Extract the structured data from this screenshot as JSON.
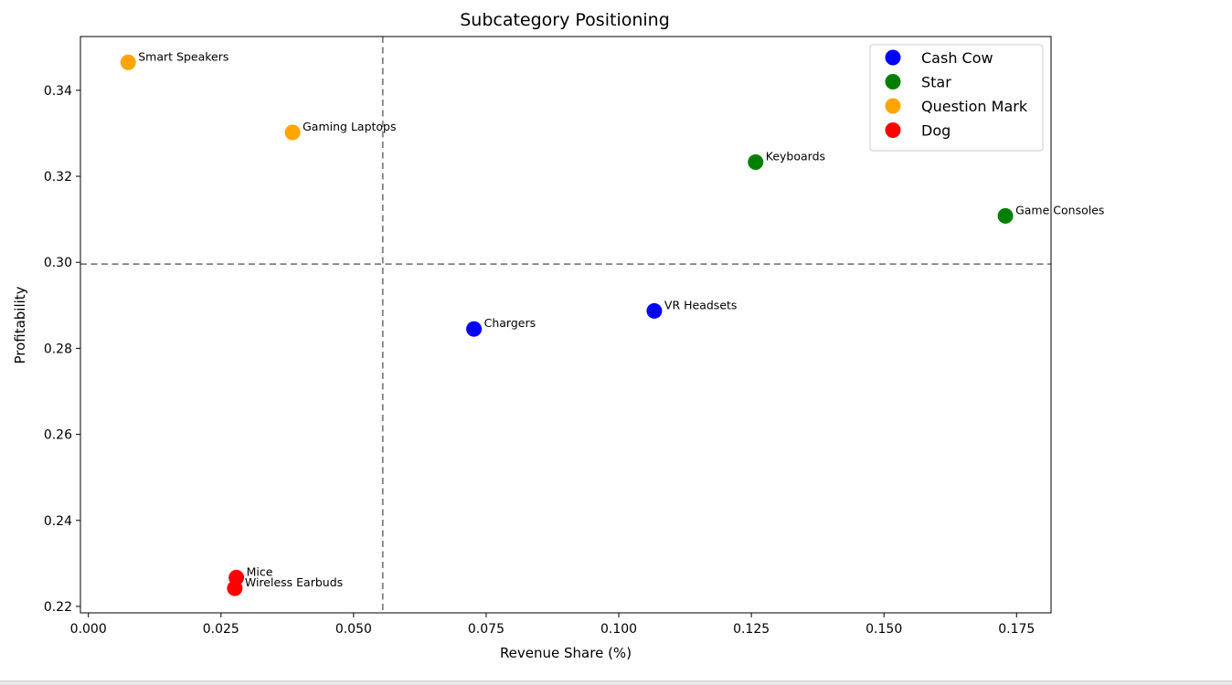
{
  "chart_data": {
    "type": "scatter",
    "title": "Subcategory Positioning",
    "xlabel": "Revenue Share (%)",
    "ylabel": "Profitability",
    "xlim": [
      -0.0015,
      0.1815
    ],
    "ylim": [
      0.2185,
      0.3525
    ],
    "xticks": [
      0.0,
      0.025,
      0.05,
      0.075,
      0.1,
      0.125,
      0.15,
      0.175
    ],
    "xtick_labels": [
      "0.000",
      "0.025",
      "0.050",
      "0.075",
      "0.100",
      "0.125",
      "0.150",
      "0.175"
    ],
    "yticks": [
      0.22,
      0.24,
      0.26,
      0.28,
      0.3,
      0.32,
      0.34
    ],
    "ytick_labels": [
      "0.22",
      "0.24",
      "0.26",
      "0.28",
      "0.30",
      "0.32",
      "0.34"
    ],
    "grid": false,
    "legend_position": "top-right",
    "reference_lines": {
      "x": 0.0555,
      "y": 0.2996,
      "color": "#808080",
      "style": "dashed"
    },
    "series": [
      {
        "name": "Cash Cow",
        "color": "#0000ff",
        "points": [
          {
            "label": "Chargers",
            "x": 0.0727,
            "y": 0.2845
          },
          {
            "label": "VR Headsets",
            "x": 0.1067,
            "y": 0.2887
          }
        ]
      },
      {
        "name": "Star",
        "color": "#008000",
        "points": [
          {
            "label": "Keyboards",
            "x": 0.1258,
            "y": 0.3233
          },
          {
            "label": "Game Consoles",
            "x": 0.1729,
            "y": 0.3108
          }
        ]
      },
      {
        "name": "Question Mark",
        "color": "#ffa500",
        "points": [
          {
            "label": "Smart Speakers",
            "x": 0.0075,
            "y": 0.3465
          },
          {
            "label": "Gaming Laptops",
            "x": 0.0385,
            "y": 0.3302
          }
        ]
      },
      {
        "name": "Dog",
        "color": "#ff0000",
        "points": [
          {
            "label": "Mice",
            "x": 0.0279,
            "y": 0.2267
          },
          {
            "label": "Wireless Earbuds",
            "x": 0.0276,
            "y": 0.2242
          }
        ]
      }
    ]
  }
}
